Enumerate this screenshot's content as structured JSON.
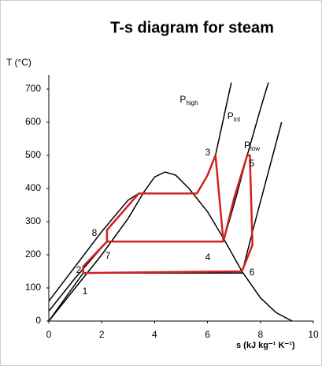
{
  "chart_data": {
    "type": "line",
    "title": "T-s diagram for steam",
    "y_label": "T (°C)",
    "x_label": "s (kJ kg⁻¹ K⁻¹)",
    "xlim": [
      0,
      10
    ],
    "xticks": [
      0,
      2,
      4,
      6,
      8,
      10
    ],
    "ylim": [
      0,
      700
    ],
    "yticks": [
      0,
      100,
      200,
      300,
      400,
      500,
      600,
      700
    ],
    "series": [
      {
        "color": "#000000",
        "x": [
          0,
          1,
          2,
          3,
          3.6,
          4.0,
          4.4,
          4.8,
          5.3,
          6.0,
          6.6,
          7.3,
          8.0,
          8.6,
          9.2
        ],
        "values": [
          0,
          100,
          200,
          310,
          390,
          435,
          450,
          440,
          400,
          330,
          250,
          150,
          70,
          25,
          0
        ]
      },
      {
        "color": "#000000",
        "x": [
          0,
          1,
          2,
          3,
          3.4,
          5.6,
          6.0,
          6.3,
          6.6,
          6.9
        ],
        "values": [
          60,
          165,
          270,
          365,
          385,
          385,
          440,
          500,
          610,
          720
        ]
      },
      {
        "color": "#000000",
        "x": [
          0,
          1,
          2.2,
          6.6,
          7.1,
          7.5,
          8.0,
          8.3
        ],
        "values": [
          30,
          130,
          240,
          240,
          380,
          500,
          640,
          720
        ]
      },
      {
        "color": "#000000",
        "x": [
          0,
          1.3,
          7.3,
          7.8,
          8.3,
          8.8
        ],
        "values": [
          0,
          145,
          145,
          300,
          450,
          600
        ]
      },
      {
        "color": "#d42020",
        "x": [
          1.3,
          1.3,
          2.2,
          2.2,
          3.4,
          5.6,
          6.0,
          6.3,
          6.6,
          7.0,
          7.5,
          7.6,
          7.7,
          7.3,
          1.3
        ],
        "values": [
          145,
          165,
          240,
          275,
          385,
          385,
          440,
          500,
          240,
          370,
          500,
          500,
          230,
          150,
          145
        ]
      },
      {
        "color": "#d42020",
        "x": [
          2.2,
          6.6
        ],
        "values": [
          240,
          240
        ]
      }
    ],
    "annotations": [
      {
        "text": "1"
      },
      {
        "text": "2"
      },
      {
        "text": "8"
      },
      {
        "text": "7"
      },
      {
        "text": "4"
      },
      {
        "text": "6"
      },
      {
        "text": "3"
      },
      {
        "text": "5"
      },
      {
        "text": "P",
        "sub": "high"
      },
      {
        "text": "P",
        "sub": "int"
      },
      {
        "text": "P",
        "sub": "low"
      }
    ]
  }
}
